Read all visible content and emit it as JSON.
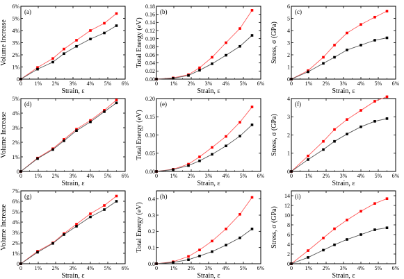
{
  "colors": {
    "series_red": "#ff0000",
    "series_black": "#000000",
    "line_red": "#ff5a5a",
    "line_black": "#555555"
  },
  "chart_data": [
    {
      "panel_label": "(a)",
      "type": "line",
      "xlabel": "Strain, ε",
      "ylabel": "Volume Increase",
      "xlim": [
        0,
        0.06
      ],
      "ylim": [
        0,
        0.06
      ],
      "xticks": [
        "0",
        "1%",
        "2%",
        "3%",
        "4%",
        "5%",
        "6%"
      ],
      "yticks": [
        "0",
        "1%",
        "2%",
        "3%",
        "4%",
        "5%",
        "6%"
      ],
      "x": [
        0,
        0.0096,
        0.0184,
        0.0248,
        0.032,
        0.04,
        0.048,
        0.055
      ],
      "series": [
        {
          "color": "#ff0000",
          "values": [
            0,
            0.0096,
            0.017,
            0.0248,
            0.032,
            0.04,
            0.046,
            0.054
          ]
        },
        {
          "color": "#000000",
          "values": [
            0,
            0.0082,
            0.014,
            0.021,
            0.027,
            0.033,
            0.038,
            0.044
          ]
        }
      ]
    },
    {
      "panel_label": "(b)",
      "type": "line",
      "xlabel": "Strain, ε",
      "ylabel": "Total Energy (eV)",
      "xlim": [
        0,
        0.06
      ],
      "ylim": [
        0,
        0.18
      ],
      "xticks": [
        "0",
        "1%",
        "2%",
        "3%",
        "4%",
        "5%",
        "6%"
      ],
      "yticks": [
        "0.00",
        "0.02",
        "0.04",
        "0.06",
        "0.08",
        "0.10",
        "0.12",
        "0.14",
        "0.16",
        "0.18"
      ],
      "x": [
        0,
        0.0096,
        0.0184,
        0.0248,
        0.032,
        0.04,
        0.048,
        0.055
      ],
      "series": [
        {
          "color": "#ff0000",
          "values": [
            0,
            0.003,
            0.011,
            0.028,
            0.054,
            0.09,
            0.125,
            0.17
          ]
        },
        {
          "color": "#000000",
          "values": [
            0,
            0.002,
            0.009,
            0.022,
            0.038,
            0.059,
            0.081,
            0.108
          ]
        }
      ]
    },
    {
      "panel_label": "(c)",
      "type": "line",
      "xlabel": "Strain, ε",
      "ylabel": "Stress, σ (GPa)",
      "xlim": [
        0,
        0.06
      ],
      "ylim": [
        0,
        6
      ],
      "xticks": [
        "0",
        "1%",
        "2%",
        "3%",
        "4%",
        "5%",
        "6%"
      ],
      "yticks": [
        "0",
        "1",
        "2",
        "3",
        "4",
        "5",
        "6"
      ],
      "x": [
        0,
        0.0096,
        0.0184,
        0.0248,
        0.032,
        0.04,
        0.048,
        0.055
      ],
      "series": [
        {
          "color": "#ff0000",
          "values": [
            0,
            0.7,
            1.8,
            2.8,
            3.8,
            4.5,
            5.1,
            5.6
          ]
        },
        {
          "color": "#000000",
          "values": [
            0,
            0.6,
            1.3,
            1.8,
            2.4,
            2.8,
            3.2,
            3.4
          ]
        }
      ]
    },
    {
      "panel_label": "(d)",
      "type": "line",
      "xlabel": "Strain, ε",
      "ylabel": "Volume Increase",
      "xlim": [
        0,
        0.06
      ],
      "ylim": [
        0,
        0.05
      ],
      "xticks": [
        "0",
        "1%",
        "2%",
        "3%",
        "4%",
        "5%",
        "6%"
      ],
      "yticks": [
        "0",
        "1%",
        "2%",
        "3%",
        "4%",
        "5%"
      ],
      "x": [
        0,
        0.0096,
        0.0184,
        0.0248,
        0.032,
        0.04,
        0.048,
        0.055
      ],
      "series": [
        {
          "color": "#ff0000",
          "values": [
            0,
            0.0092,
            0.0156,
            0.022,
            0.029,
            0.035,
            0.042,
            0.049
          ]
        },
        {
          "color": "#000000",
          "values": [
            0,
            0.0088,
            0.015,
            0.021,
            0.028,
            0.034,
            0.041,
            0.047
          ]
        }
      ]
    },
    {
      "panel_label": "(e)",
      "type": "line",
      "xlabel": "Strain, ε",
      "ylabel": "Total Energy (eV)",
      "xlim": [
        0,
        0.06
      ],
      "ylim": [
        0,
        0.2
      ],
      "xticks": [
        "0",
        "1%",
        "2%",
        "3%",
        "4%",
        "5%",
        "6%"
      ],
      "yticks": [
        "0.00",
        "0.05",
        "0.10",
        "0.15",
        "0.20"
      ],
      "x": [
        0,
        0.0096,
        0.0184,
        0.0248,
        0.032,
        0.04,
        0.048,
        0.055
      ],
      "series": [
        {
          "color": "#ff0000",
          "values": [
            0,
            0.006,
            0.02,
            0.04,
            0.066,
            0.096,
            0.135,
            0.177
          ]
        },
        {
          "color": "#000000",
          "values": [
            0,
            0.005,
            0.016,
            0.029,
            0.047,
            0.07,
            0.097,
            0.128
          ]
        }
      ]
    },
    {
      "panel_label": "(f)",
      "type": "line",
      "xlabel": "Strain, ε",
      "ylabel": "Stress, σ (GPa)",
      "xlim": [
        0,
        0.06
      ],
      "ylim": [
        0,
        4
      ],
      "xticks": [
        "0",
        "1%",
        "2%",
        "3%",
        "4%",
        "5%",
        "6%"
      ],
      "yticks": [
        "0",
        "1",
        "2",
        "3",
        "4"
      ],
      "x": [
        0,
        0.0096,
        0.0184,
        0.0248,
        0.032,
        0.04,
        0.048,
        0.055
      ],
      "series": [
        {
          "color": "#ff0000",
          "values": [
            0,
            0.85,
            1.65,
            2.3,
            2.85,
            3.35,
            3.85,
            4.1
          ]
        },
        {
          "color": "#000000",
          "values": [
            0,
            0.65,
            1.2,
            1.65,
            2.05,
            2.45,
            2.75,
            2.9
          ]
        }
      ]
    },
    {
      "panel_label": "(g)",
      "type": "line",
      "xlabel": "Strain, ε",
      "ylabel": "Volume Increase",
      "xlim": [
        0,
        0.06
      ],
      "ylim": [
        0,
        0.07
      ],
      "xticks": [
        "0",
        "1%",
        "2%",
        "3%",
        "4%",
        "5%",
        "6%"
      ],
      "yticks": [
        "0",
        "1%",
        "2%",
        "3%",
        "4%",
        "5%",
        "6%",
        "7%"
      ],
      "x": [
        0,
        0.0096,
        0.0184,
        0.0248,
        0.032,
        0.04,
        0.048,
        0.055
      ],
      "series": [
        {
          "color": "#ff0000",
          "values": [
            0,
            0.012,
            0.02,
            0.029,
            0.038,
            0.048,
            0.056,
            0.065
          ]
        },
        {
          "color": "#000000",
          "values": [
            0,
            0.011,
            0.0195,
            0.028,
            0.036,
            0.045,
            0.052,
            0.06
          ]
        }
      ]
    },
    {
      "panel_label": "(h)",
      "type": "line",
      "xlabel": "Strain, ε",
      "ylabel": "Total Energy (eV)",
      "xlim": [
        0,
        0.06
      ],
      "ylim": [
        0,
        0.45
      ],
      "xticks": [
        "0",
        "1%",
        "2%",
        "3%",
        "4%",
        "5%",
        "6%"
      ],
      "yticks": [
        "0.0",
        "0.1",
        "0.2",
        "0.3",
        "0.4"
      ],
      "x": [
        0,
        0.0096,
        0.0184,
        0.0248,
        0.032,
        0.04,
        0.048,
        0.055
      ],
      "series": [
        {
          "color": "#ff0000",
          "values": [
            0,
            0.012,
            0.045,
            0.085,
            0.14,
            0.215,
            0.305,
            0.41
          ]
        },
        {
          "color": "#000000",
          "values": [
            0,
            0.008,
            0.025,
            0.048,
            0.075,
            0.115,
            0.16,
            0.215
          ]
        }
      ]
    },
    {
      "panel_label": "(i)",
      "type": "line",
      "xlabel": "Strain, ε",
      "ylabel": "Stress, σ (GPa)",
      "xlim": [
        0,
        0.06
      ],
      "ylim": [
        0,
        15
      ],
      "xticks": [
        "0",
        "1%",
        "2%",
        "3%",
        "4%",
        "5%",
        "6%"
      ],
      "yticks": [
        "0",
        "2",
        "4",
        "6",
        "8",
        "10",
        "12",
        "14"
      ],
      "x": [
        0,
        0.0096,
        0.0184,
        0.0248,
        0.032,
        0.04,
        0.048,
        0.055
      ],
      "series": [
        {
          "color": "#ff0000",
          "values": [
            0,
            2.7,
            5.3,
            7.2,
            9.0,
            10.8,
            12.4,
            13.4
          ]
        },
        {
          "color": "#000000",
          "values": [
            0,
            1.3,
            2.8,
            3.9,
            5.0,
            6.0,
            7.0,
            7.4
          ]
        }
      ]
    }
  ]
}
